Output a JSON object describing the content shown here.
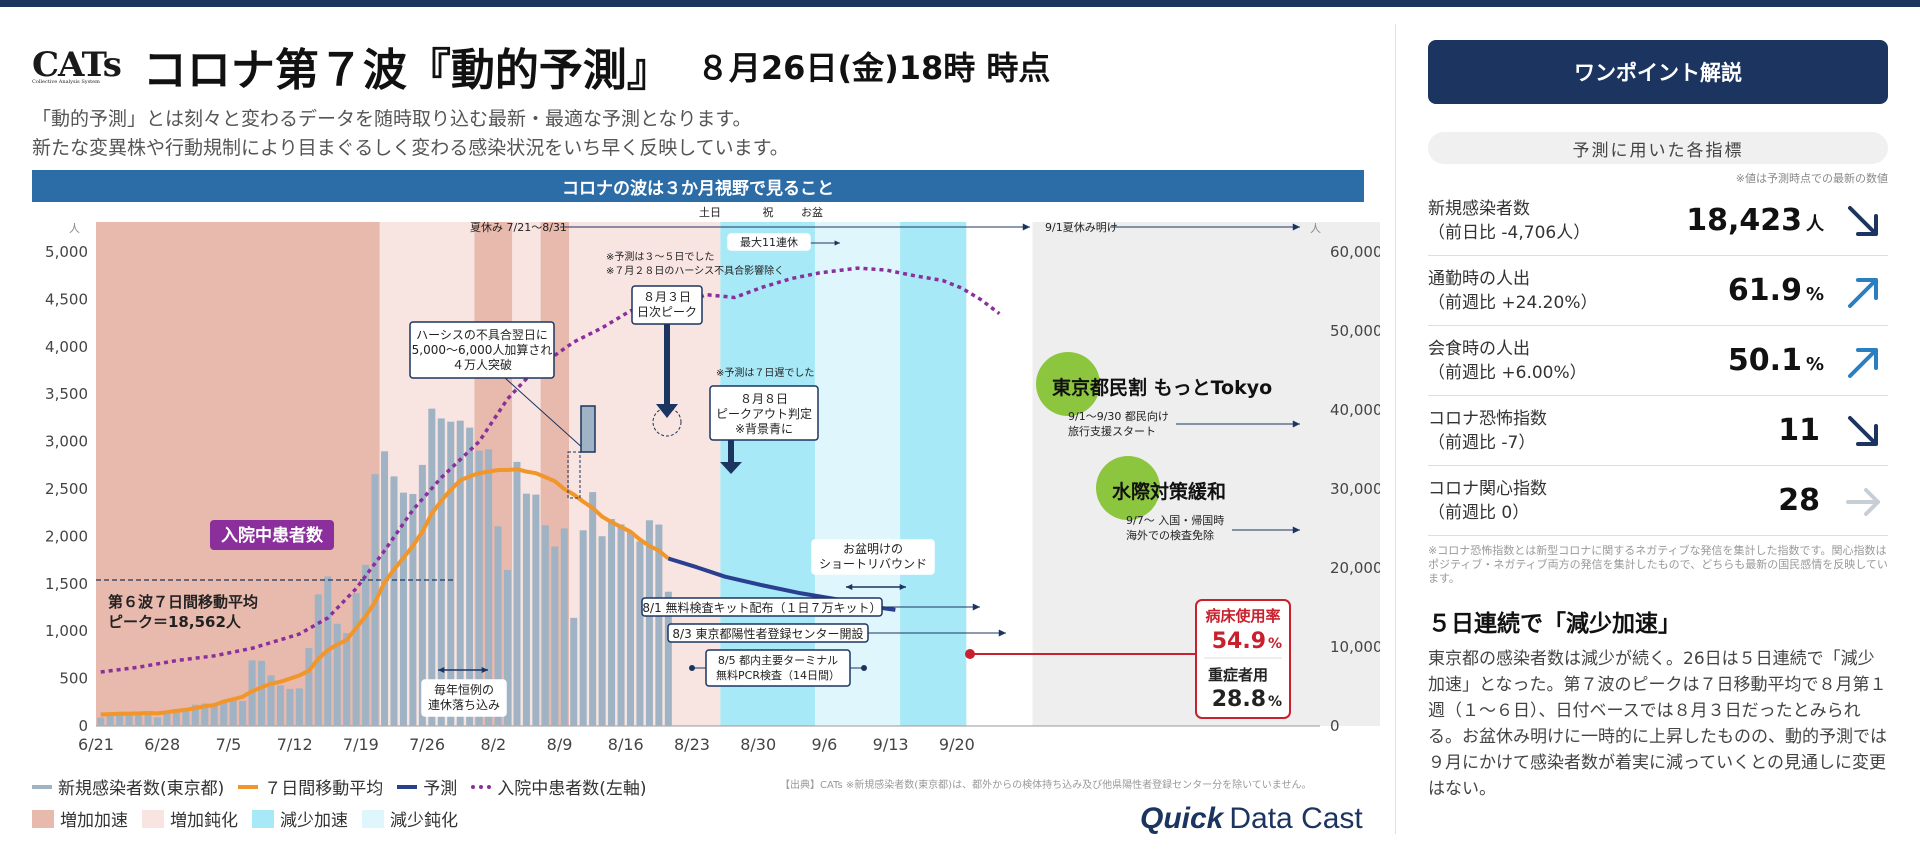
{
  "header": {
    "logo": "CATs",
    "logo_sub": "Collective Analysis System",
    "title": "コロナ第７波『動的予測』",
    "as_of": "８月26日(金)18時 時点"
  },
  "subtitle": {
    "line1": "「動的予測」とは刻々と変わるデータを随時取り込む最新・最適な予測となります。",
    "line2": "新たな変異株や行動規制により目まぐるしく変わる感染状況をいち早く反映しています。"
  },
  "banner": "コロナの波は３か月視野で見ること",
  "colors": {
    "bar": "#9fb3c4",
    "ma": "#f0962a",
    "forecast": "#2a3f8f",
    "hosp": "#8a2f9c",
    "accel_up": "#e8b9ad",
    "slow_up": "#f8e4e1",
    "accel_down": "#a8e9f8",
    "slow_down": "#dff7fc",
    "future": "#eeeeee",
    "banner": "#2c6ca7",
    "navy": "#1b3560"
  },
  "chart_data": {
    "type": "bar+line",
    "start_date": "6/21",
    "x_ticks": [
      "6/21",
      "6/28",
      "7/5",
      "7/12",
      "7/19",
      "7/26",
      "8/2",
      "8/9",
      "8/16",
      "8/23",
      "8/30",
      "9/6",
      "9/13",
      "9/20"
    ],
    "y_left": {
      "unit": "人",
      "min": 0,
      "max": 5000,
      "ticks": [
        0,
        500,
        "1,000",
        "1,500",
        "2,000",
        "2,500",
        "3,000",
        "3,500",
        "4,000",
        "4,500",
        "5,000"
      ]
    },
    "y_right": {
      "unit": "人",
      "min": 0,
      "max": 60000,
      "ticks": [
        0,
        "10,000",
        "20,000",
        "30,000",
        "40,000",
        "50,000",
        "60,000"
      ]
    },
    "new_cases": [
      1070,
      1660,
      1700,
      1550,
      1670,
      1550,
      1080,
      1690,
      2140,
      2300,
      2700,
      2850,
      2680,
      3180,
      3330,
      3180,
      8310,
      8240,
      6410,
      5150,
      4690,
      4760,
      9870,
      16660,
      18920,
      12940,
      11760,
      16810,
      20400,
      31870,
      34770,
      31590,
      29540,
      29370,
      33050,
      40170,
      38930,
      38520,
      38650,
      37770,
      34850,
      35020,
      25280,
      19750,
      33430,
      29410,
      29290,
      25410,
      22720,
      25020,
      13690,
      24770,
      29610,
      24020,
      26200,
      25520,
      24560,
      23370,
      26040,
      25500,
      17000
    ],
    "moving_avg": [
      1450,
      1500,
      1550,
      1560,
      1600,
      1650,
      1600,
      1750,
      1920,
      2050,
      2250,
      2500,
      2650,
      3100,
      3400,
      3700,
      4400,
      4900,
      5350,
      5600,
      6000,
      6400,
      7000,
      8500,
      9600,
      10300,
      10900,
      12400,
      13900,
      15700,
      18200,
      19800,
      21300,
      22800,
      24600,
      26900,
      28500,
      29900,
      31100,
      31600,
      32000,
      32200,
      32400,
      32400,
      32500,
      32200,
      32000,
      31500,
      31000,
      30000,
      29300,
      28400,
      27600,
      26500,
      25800,
      25200,
      24600,
      23600,
      22800,
      22200,
      21200
    ],
    "forecast": [
      [
        60,
        21200
      ],
      [
        63,
        20100
      ],
      [
        66,
        18900
      ],
      [
        70,
        17800
      ],
      [
        74,
        16800
      ],
      [
        78,
        16000
      ],
      [
        81,
        15200
      ],
      [
        84,
        14700
      ]
    ],
    "hospitalized": [
      {
        "x": 0,
        "v": 570
      },
      {
        "x": 4,
        "v": 620
      },
      {
        "x": 8,
        "v": 690
      },
      {
        "x": 12,
        "v": 740
      },
      {
        "x": 16,
        "v": 820
      },
      {
        "x": 21,
        "v": 970
      },
      {
        "x": 24,
        "v": 1140
      },
      {
        "x": 27,
        "v": 1450
      },
      {
        "x": 30,
        "v": 1850
      },
      {
        "x": 33,
        "v": 2280
      },
      {
        "x": 36,
        "v": 2620
      },
      {
        "x": 40,
        "v": 3000
      },
      {
        "x": 43,
        "v": 3450
      },
      {
        "x": 46,
        "v": 3770
      },
      {
        "x": 50,
        "v": 4050
      },
      {
        "x": 53,
        "v": 4200
      },
      {
        "x": 56,
        "v": 4380
      },
      {
        "x": 60,
        "v": 4400
      },
      {
        "x": 64,
        "v": 4550
      },
      {
        "x": 67,
        "v": 4520
      },
      {
        "x": 70,
        "v": 4630
      },
      {
        "x": 73,
        "v": 4720
      },
      {
        "x": 76,
        "v": 4780
      },
      {
        "x": 80,
        "v": 4830
      },
      {
        "x": 83,
        "v": 4810
      },
      {
        "x": 86,
        "v": 4750
      },
      {
        "x": 89,
        "v": 4700
      },
      {
        "x": 91,
        "v": 4620
      },
      {
        "x": 93,
        "v": 4500
      },
      {
        "x": 95,
        "v": 4350
      }
    ],
    "phases": [
      {
        "from": 0,
        "to": 30,
        "type": "accel_up"
      },
      {
        "from": 30,
        "to": 40,
        "type": "slow_up"
      },
      {
        "from": 40,
        "to": 44,
        "type": "accel_up"
      },
      {
        "from": 44,
        "to": 47,
        "type": "slow_up"
      },
      {
        "from": 47,
        "to": 50,
        "type": "accel_up"
      },
      {
        "from": 50,
        "to": 66,
        "type": "slow_up"
      },
      {
        "from": 66,
        "to": 76,
        "type": "accel_down"
      },
      {
        "from": 76,
        "to": 85,
        "type": "slow_down"
      },
      {
        "from": 85,
        "to": 92,
        "type": "accel_down"
      },
      {
        "from": 99,
        "to": 136,
        "type": "future"
      }
    ],
    "peak6_line": 1540
  },
  "annotations": {
    "summer": "夏休み 7/21〜8/31",
    "summer_end": "9/1夏休み明け",
    "donichi": "土日",
    "shuku": "祝",
    "obon": "お盆",
    "renkyu": "最大11連休",
    "note_top1": "※予測は３〜５日でした",
    "note_top2": "※７月２８日のハーシス不具合影響除く",
    "peak_day": [
      "８月３日",
      "日次ピーク"
    ],
    "hersys": [
      "ハーシスの不具合翌日に",
      "5,000〜6,000人加算され",
      "４万人突破"
    ],
    "note_mid": "※予測は７日遅でした",
    "peakout": [
      "８月８日",
      "ピークアウト判定",
      "※背景青に"
    ],
    "hosp_label": "入院中患者数",
    "peak6": [
      "第６波７日間移動平均",
      "ピーク＝18,562人"
    ],
    "yearly": [
      "毎年恒例の",
      "連休落ち込み"
    ],
    "rebound": [
      "お盆明けの",
      "ショートリバウンド"
    ],
    "kit": "8/1 無料検査キット配布（１日７万キット）",
    "center": "8/3 東京都陽性者登録センター開設",
    "pcr": [
      "8/5 都内主要ターミナル",
      "無料PCR検査（14日間）"
    ],
    "motto": "東京都民割 もっとTokyo",
    "motto_sub": [
      "9/1〜9/30 都民向け",
      "旅行支援スタート"
    ],
    "border": "水際対策緩和",
    "border_sub": [
      "9/7〜 入国・帰国時",
      "海外での検査免除"
    ],
    "bed_label": "病床使用率",
    "bed_val": "54.9",
    "sev_label": "重症者用",
    "sev_val": "28.8",
    "pct": "%"
  },
  "legend": {
    "bar": "新規感染者数(東京都)",
    "ma": "７日間移動平均",
    "forecast": "予測",
    "hosp": "入院中患者数(左軸)",
    "accel_up": "増加加速",
    "slow_up": "増加鈍化",
    "accel_down": "減少加速",
    "slow_down": "減少鈍化"
  },
  "source": "【出典】CATs ※新規感染者数(東京都)は、都外からの検体持ち込み及び他県陽性者登録センター分を除いていません。",
  "brand": {
    "a": "Quick",
    "b": "Data Cast"
  },
  "sidebar": {
    "button": "ワンポイント解説",
    "ind_header": "予測に用いた各指標",
    "ind_note": "※値は予測時点での最新の数値",
    "indicators": [
      {
        "l1": "新規感染者数",
        "l2": "（前日比 -4,706人）",
        "v": "18,423",
        "u": "人",
        "icon": "arrow-down-right",
        "color": "#1b3560"
      },
      {
        "l1": "通勤時の人出",
        "l2": "（前週比 +24.20%）",
        "v": "61.9",
        "u": "%",
        "icon": "arrow-up-right",
        "color": "#2a7fc1"
      },
      {
        "l1": "会食時の人出",
        "l2": "（前週比 +6.00%）",
        "v": "50.1",
        "u": "%",
        "icon": "arrow-up-right",
        "color": "#2a7fc1"
      },
      {
        "l1": "コロナ恐怖指数",
        "l2": "（前週比 -7）",
        "v": "11",
        "u": "",
        "icon": "arrow-down-right",
        "color": "#1b3560"
      },
      {
        "l1": "コロナ関心指数",
        "l2": "（前週比 0）",
        "v": "28",
        "u": "",
        "icon": "arrow-right",
        "color": "#c8ced6"
      }
    ],
    "footnote": "※コロナ恐怖指数とは新型コロナに関するネガティブな発信を集計した指数です。関心指数はポジティブ・ネガティブ両方の発信を集計したもので、どちらも最新の国民感情を反映しています。",
    "section_title": "５日連続で「減少加速」",
    "body": "東京都の感染者数は減少が続く。26日は５日連続で「減少加速」となった。第７波のピークは７日移動平均で８月第１週（１〜６日）、日付ベースでは８月３日だったとみられる。お盆休み明けに一時的に上昇したものの、動的予測では９月にかけて感染者数が着実に減っていくとの見通しに変更はない。"
  }
}
